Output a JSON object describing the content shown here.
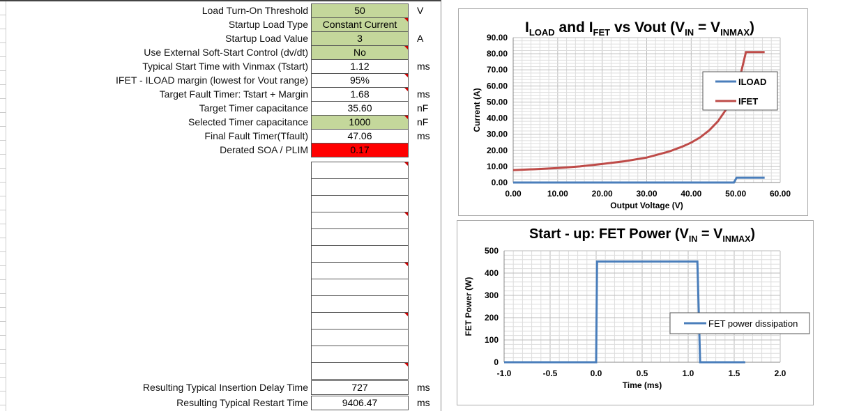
{
  "params": [
    {
      "label": "Load Turn-On Threshold",
      "value": "50",
      "unit": "V",
      "style": "g",
      "comment": false
    },
    {
      "label": "Startup Load Type",
      "value": "Constant Current",
      "unit": "",
      "style": "g",
      "comment": true
    },
    {
      "label": "Startup Load Value",
      "value": "3",
      "unit": "A",
      "style": "g",
      "comment": false
    },
    {
      "label": "Use External Soft-Start Control (dv/dt)",
      "value": "No",
      "unit": "",
      "style": "g",
      "comment": true
    },
    {
      "label": "Typical Start Time with Vinmax (Tstart)",
      "value": "1.12",
      "unit": "ms",
      "style": "",
      "comment": false
    },
    {
      "label": "IFET - ILOAD margin (lowest for Vout range)",
      "value": "95%",
      "unit": "",
      "style": "",
      "comment": true
    },
    {
      "label": "Target Fault Timer: Tstart + Margin",
      "value": "1.68",
      "unit": "ms",
      "style": "",
      "comment": true
    },
    {
      "label": "Target Timer capacitance",
      "value": "35.60",
      "unit": "nF",
      "style": "",
      "comment": false
    },
    {
      "label": "Selected Timer capacitance",
      "value": "1000",
      "unit": "nF",
      "style": "g",
      "comment": true
    },
    {
      "label": "Final Fault Timer(Tfault)",
      "value": "47.06",
      "unit": "ms",
      "style": "",
      "comment": false
    },
    {
      "label": "Derated SOA / PLIM",
      "value": "0.17",
      "unit": "",
      "style": "r",
      "comment": false
    }
  ],
  "bottom_params": [
    {
      "label": "Resulting Typical Insertion Delay Time",
      "value": "727",
      "unit": "ms"
    },
    {
      "label": "Resulting Typical Restart Time",
      "value": "9406.47",
      "unit": "ms"
    }
  ],
  "chart_data": [
    {
      "type": "line",
      "title": "ILOAD and IFET vs Vout (VIN = VINMAX)",
      "xlabel": "Output Voltage (V)",
      "ylabel": "Current (A)",
      "xlim": [
        0,
        60
      ],
      "ylim": [
        0,
        90
      ],
      "xticks": [
        "0.00",
        "10.00",
        "20.00",
        "30.00",
        "40.00",
        "50.00",
        "60.00"
      ],
      "yticks": [
        "0.00",
        "10.00",
        "20.00",
        "30.00",
        "40.00",
        "50.00",
        "60.00",
        "70.00",
        "80.00",
        "90.00"
      ],
      "legend": "right",
      "series": [
        {
          "name": "ILOAD",
          "color": "#4a7ebb",
          "x": [
            0,
            49.6,
            50.2,
            56.5
          ],
          "y": [
            0,
            0,
            3,
            3
          ]
        },
        {
          "name": "IFET",
          "color": "#be4b48",
          "x": [
            0,
            5,
            10,
            15,
            20,
            25,
            30,
            35,
            38,
            40,
            42,
            44,
            46,
            48,
            50,
            51,
            52.3,
            56.5
          ],
          "y": [
            7.7,
            8.3,
            9,
            10,
            11.5,
            13.2,
            15.5,
            19.2,
            22.3,
            24.8,
            28,
            32.3,
            38,
            46,
            58,
            66,
            81,
            81
          ]
        }
      ]
    },
    {
      "type": "line",
      "title": "Start - up: FET Power (VIN = VINMAX)",
      "xlabel": "Time (ms)",
      "ylabel": "FET Power (W)",
      "xlim": [
        -1,
        2
      ],
      "ylim": [
        0,
        500
      ],
      "xticks": [
        "-1.0",
        "-0.5",
        "0.0",
        "0.5",
        "1.0",
        "1.5",
        "2.0"
      ],
      "yticks": [
        "0",
        "100",
        "200",
        "300",
        "400",
        "500"
      ],
      "legend": "right",
      "series": [
        {
          "name": "FET power dissipation",
          "color": "#4a7ebb",
          "x": [
            -1,
            0,
            0.01,
            1.1,
            1.13,
            1.62
          ],
          "y": [
            0,
            0,
            452,
            452,
            0,
            0
          ]
        }
      ]
    }
  ]
}
